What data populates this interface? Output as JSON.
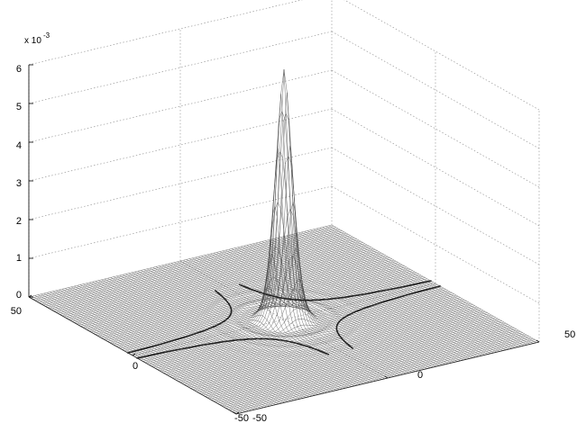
{
  "chart_data": {
    "type": "mesh-surface",
    "title": "",
    "xlabel": "",
    "ylabel": "",
    "zlabel": "",
    "xlim": [
      -50,
      50
    ],
    "ylim": [
      -50,
      50
    ],
    "zlim": [
      0,
      0.006
    ],
    "z_ticks": [
      0,
      1,
      2,
      3,
      4,
      5,
      6
    ],
    "z_tick_labels": [
      "0",
      "1",
      "2",
      "3",
      "4",
      "5",
      "6"
    ],
    "z_exponent_text": "x 10",
    "z_exponent_power": "-3",
    "x_tick_labels": [
      "-50",
      "0",
      "50"
    ],
    "y_tick_labels": [
      "-50",
      "0",
      "50"
    ],
    "peak": {
      "x": 0,
      "y": 0,
      "z": 0.0057
    },
    "base_level": 0,
    "grid": true,
    "mesh_color": "#3a3a3a"
  }
}
